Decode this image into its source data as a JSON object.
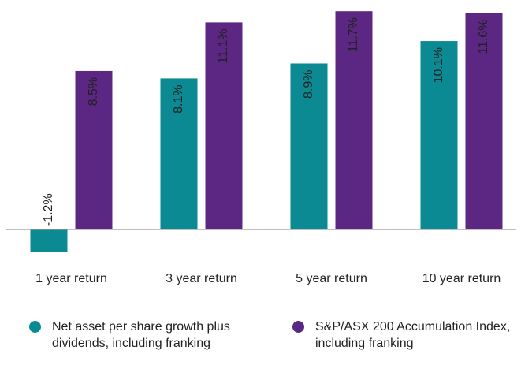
{
  "chart_data": {
    "type": "bar",
    "categories": [
      "1 year return",
      "3 year return",
      "5 year return",
      "10 year return"
    ],
    "series": [
      {
        "name": "Net asset per share growth plus dividends, including franking",
        "color": "#0b8a93",
        "values": [
          -1.2,
          8.1,
          8.9,
          10.1
        ],
        "value_labels": [
          "-1.2%",
          "8.1%",
          "8.9%",
          "10.1%"
        ]
      },
      {
        "name": "S&P/ASX 200 Accumulation Index, including franking",
        "color": "#5c2683",
        "values": [
          8.5,
          11.1,
          11.7,
          11.6
        ],
        "value_labels": [
          "8.5%",
          "11.1%",
          "11.7%",
          "11.6%"
        ]
      }
    ],
    "ylim": [
      -1.6,
      12.3
    ],
    "legend": "bottom"
  }
}
